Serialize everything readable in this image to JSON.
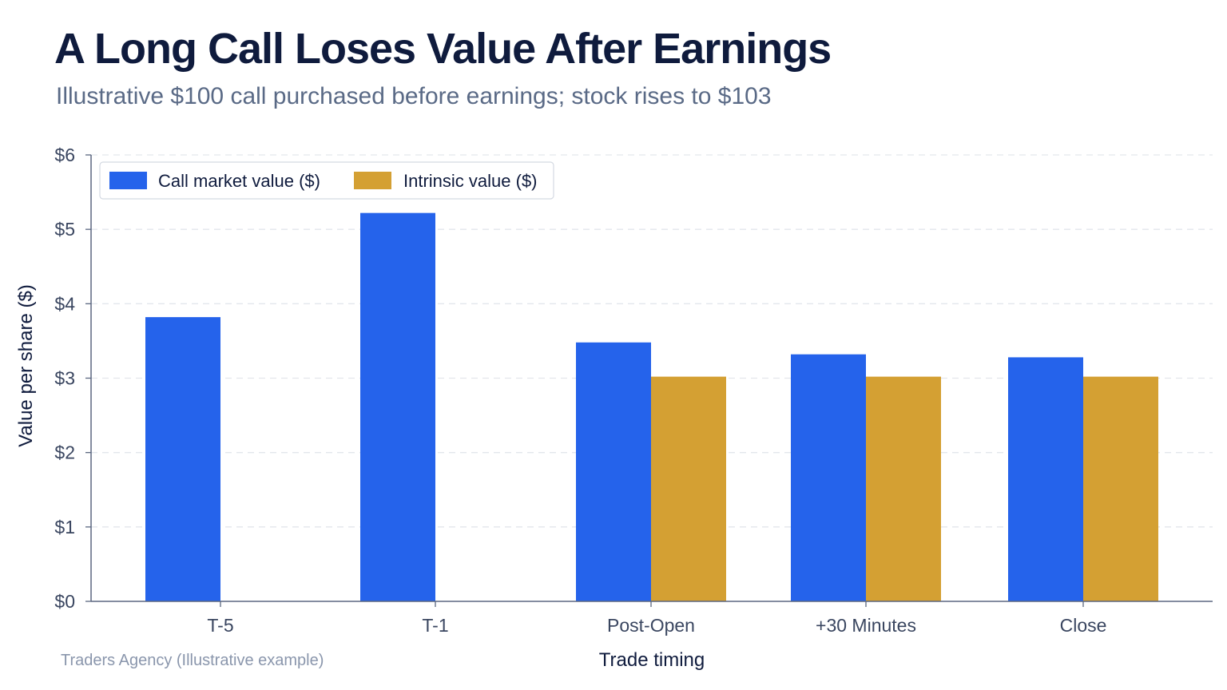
{
  "title": "A Long Call Loses Value After Earnings",
  "subtitle": "Illustrative $100 call purchased before earnings; stock rises to $103",
  "source": "Traders Agency (Illustrative example)",
  "colors": {
    "call": "#2563eb",
    "intrinsic": "#d4a033",
    "grid": "#e3e6ec",
    "axis": "#5b6780"
  },
  "chart_data": {
    "type": "bar",
    "categories": [
      "T-5",
      "T-1",
      "Post-Open",
      "+30 Minutes",
      "Close"
    ],
    "series": [
      {
        "name": "Call market value ($)",
        "values": [
          3.82,
          5.22,
          3.48,
          3.32,
          3.28
        ]
      },
      {
        "name": "Intrinsic value ($)",
        "values": [
          0,
          0,
          3.02,
          3.02,
          3.02
        ]
      }
    ],
    "xlabel": "Trade timing",
    "ylabel": "Value per share ($)",
    "ylim": [
      0,
      6
    ],
    "yticks": [
      "$0",
      "$1",
      "$2",
      "$3",
      "$4",
      "$5",
      "$6"
    ],
    "grid": true,
    "legend": "top-left"
  }
}
